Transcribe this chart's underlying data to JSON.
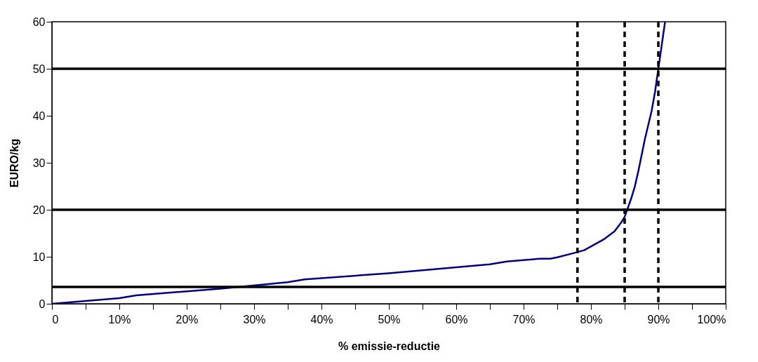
{
  "chart_data": {
    "type": "line",
    "xlabel": "% emissie-reductie",
    "ylabel": "EURO/kg",
    "x": [
      0,
      10,
      12.5,
      25,
      35,
      37.5,
      50,
      65,
      67.5,
      72.5,
      74,
      75,
      77.5,
      79,
      80.5,
      82,
      83.5,
      84.5,
      85,
      85.5,
      86,
      86.5,
      87,
      88,
      89,
      89.5,
      90,
      90.5,
      91
    ],
    "series": [
      {
        "color": "#00007f",
        "values": [
          0,
          1.2,
          1.8,
          3.2,
          4.6,
          5.2,
          6.5,
          8.4,
          9.0,
          9.6,
          9.6,
          9.9,
          10.8,
          11.4,
          12.6,
          13.8,
          15.4,
          17.3,
          18.5,
          20.5,
          22.5,
          24.9,
          28,
          35,
          41,
          45,
          50,
          55,
          60
        ]
      }
    ],
    "xlim": [
      0,
      100
    ],
    "xticks": [
      0,
      {
        "value": 5,
        "label": null
      },
      {
        "value": 10,
        "label": "10%"
      },
      {
        "value": 15,
        "label": null
      },
      {
        "value": 20,
        "label": "20%"
      },
      {
        "value": 25,
        "label": null
      },
      {
        "value": 30,
        "label": "30%"
      },
      {
        "value": 35,
        "label": null
      },
      {
        "value": 40,
        "label": "40%"
      },
      {
        "value": 45,
        "label": null
      },
      {
        "value": 50,
        "label": "50%"
      },
      {
        "value": 55,
        "label": null
      },
      {
        "value": 60,
        "label": "60%"
      },
      {
        "value": 65,
        "label": null
      },
      {
        "value": 70,
        "label": "70%"
      },
      {
        "value": 75,
        "label": null
      },
      {
        "value": 80,
        "label": "80%"
      },
      {
        "value": 85,
        "label": null
      },
      {
        "value": 90,
        "label": "90%"
      },
      {
        "value": 95,
        "label": null
      },
      {
        "value": 100,
        "label": "100%"
      }
    ],
    "ylim": [
      0,
      60
    ],
    "yticks": [
      0,
      10,
      20,
      30,
      40,
      50,
      60
    ],
    "grid": false,
    "marker": "none",
    "line_style": "solid",
    "ref_lines": [
      {
        "axis": "y",
        "value": 50,
        "color": "#000000",
        "line_style": "solid"
      },
      {
        "axis": "y",
        "value": 20,
        "color": "#000000",
        "line_style": "solid"
      },
      {
        "axis": "y",
        "value": 3.6,
        "color": "#000000",
        "line_style": "solid"
      },
      {
        "axis": "x",
        "value": 78,
        "color": "#000000",
        "line_style": "dashed"
      },
      {
        "axis": "x",
        "value": 85,
        "color": "#000000",
        "line_style": "dashed"
      },
      {
        "axis": "x",
        "value": 90,
        "color": "#000000",
        "line_style": "dashed"
      }
    ]
  }
}
